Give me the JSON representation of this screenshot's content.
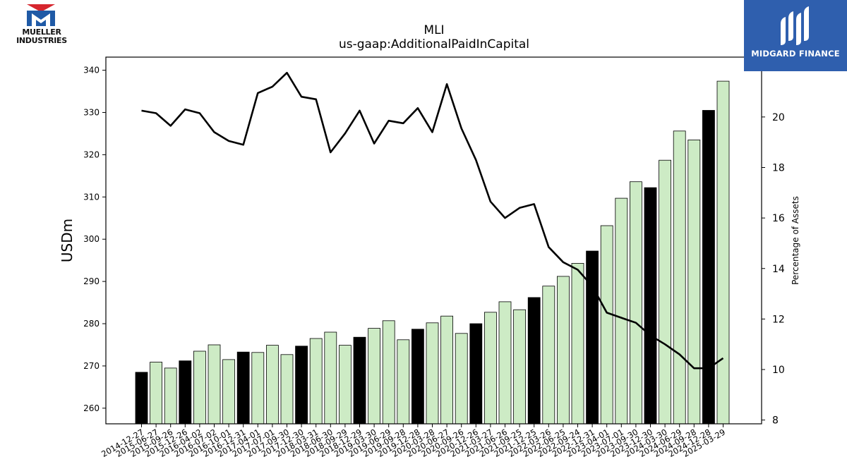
{
  "logos": {
    "left_text_line1": "MUELLER",
    "left_text_line2": "INDUSTRIES",
    "right_text": "MIDGARD FINANCE"
  },
  "chart_data": {
    "type": "bar",
    "title": "MLI",
    "subtitle": "us-gaap:AdditionalPaidInCapital",
    "ylabel": "USDm",
    "y2label": "Percentage of Assets",
    "ylim": [
      256.3,
      343.1
    ],
    "y2lim": [
      7.85,
      22.37
    ],
    "yticks": [
      "260",
      "270",
      "280",
      "290",
      "300",
      "310",
      "320",
      "330",
      "340"
    ],
    "y2ticks": [
      "8",
      "10",
      "12",
      "14",
      "16",
      "18",
      "20"
    ],
    "categories": [
      "2014-12-27",
      "2015-06-27",
      "2015-09-26",
      "2015-12-26",
      "2016-04-02",
      "2016-07-02",
      "2016-10-01",
      "2016-12-31",
      "2017-04-01",
      "2017-07-01",
      "2017-09-30",
      "2017-12-30",
      "2018-03-31",
      "2018-06-30",
      "2018-09-29",
      "2018-12-29",
      "2019-03-30",
      "2019-06-29",
      "2019-09-28",
      "2019-12-28",
      "2020-03-28",
      "2020-06-27",
      "2020-09-26",
      "2020-12-26",
      "2021-03-27",
      "2021-06-26",
      "2021-09-25",
      "2021-12-25",
      "2022-03-26",
      "2022-06-25",
      "2022-09-24",
      "2022-12-31",
      "2023-04-01",
      "2023-07-01",
      "2023-09-30",
      "2023-12-30",
      "2024-03-30",
      "2024-06-29",
      "2024-09-28",
      "2024-12-28",
      "2025-03-29"
    ],
    "series": [
      {
        "kind": "bar",
        "values": [
          268.5,
          270.9,
          269.5,
          271.2,
          273.5,
          275.0,
          271.5,
          273.3,
          273.2,
          274.9,
          272.7,
          274.7,
          276.5,
          278.0,
          274.9,
          276.8,
          278.9,
          280.7,
          276.2,
          278.7,
          280.2,
          281.8,
          277.7,
          280.0,
          282.7,
          285.2,
          283.3,
          286.2,
          288.9,
          291.2,
          294.3,
          297.2,
          303.2,
          309.7,
          313.6,
          312.2,
          318.7,
          325.6,
          323.5,
          330.5,
          337.4
        ],
        "bar_colors": [
          "#000000",
          "#cdebc5",
          "#cdebc5",
          "#000000",
          "#cdebc5",
          "#cdebc5",
          "#cdebc5",
          "#000000",
          "#cdebc5",
          "#cdebc5",
          "#cdebc5",
          "#000000",
          "#cdebc5",
          "#cdebc5",
          "#cdebc5",
          "#000000",
          "#cdebc5",
          "#cdebc5",
          "#cdebc5",
          "#000000",
          "#cdebc5",
          "#cdebc5",
          "#cdebc5",
          "#000000",
          "#cdebc5",
          "#cdebc5",
          "#cdebc5",
          "#000000",
          "#cdebc5",
          "#cdebc5",
          "#cdebc5",
          "#000000",
          "#cdebc5",
          "#cdebc5",
          "#cdebc5",
          "#000000",
          "#cdebc5",
          "#cdebc5",
          "#cdebc5",
          "#000000",
          "#cdebc5"
        ]
      },
      {
        "kind": "line",
        "axis": "right",
        "color": "#000000",
        "values": [
          20.25,
          20.15,
          19.65,
          20.3,
          20.15,
          19.4,
          19.05,
          18.9,
          20.95,
          21.2,
          21.75,
          20.8,
          20.7,
          18.6,
          19.35,
          20.25,
          18.95,
          19.85,
          19.75,
          20.35,
          19.4,
          21.3,
          19.55,
          18.3,
          16.65,
          16.0,
          16.4,
          16.55,
          14.85,
          14.25,
          13.95,
          13.3,
          12.25,
          12.05,
          11.85,
          11.35,
          11.0,
          10.6,
          10.05,
          10.05,
          10.45
        ]
      }
    ],
    "grid": false,
    "legend": "none"
  }
}
